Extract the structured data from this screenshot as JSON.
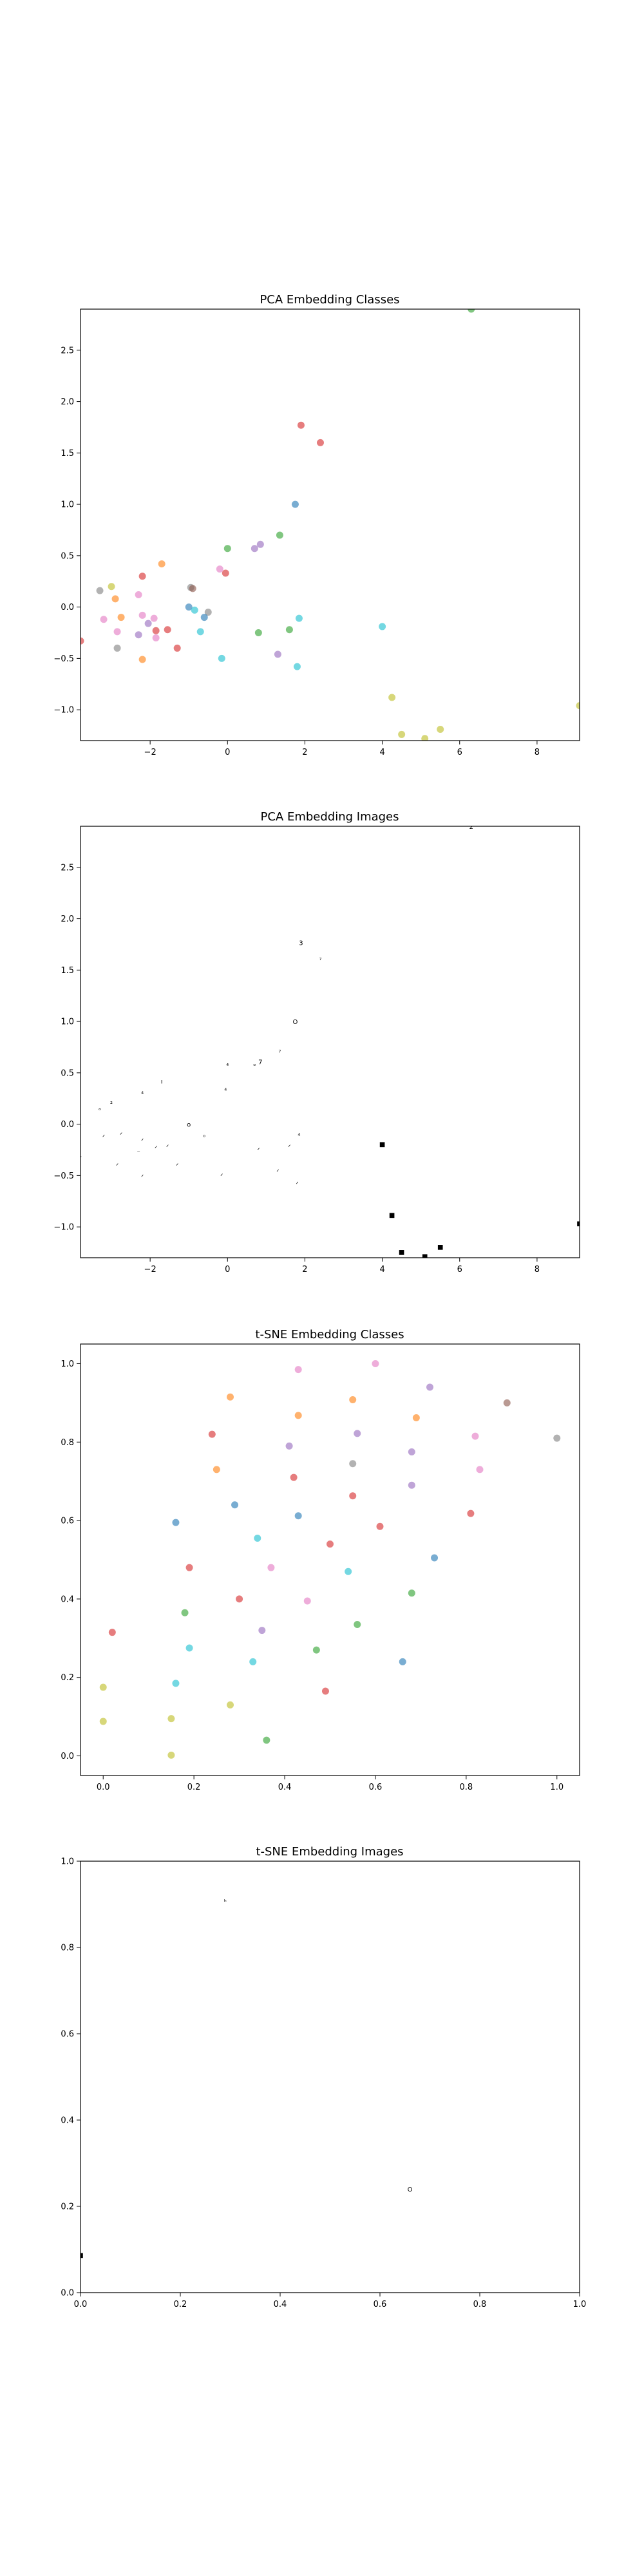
{
  "chart_data": [
    {
      "type": "scatter",
      "title": "PCA Embedding Classes",
      "xlim": [
        -3.8,
        9.1
      ],
      "ylim": [
        -1.3,
        2.9
      ],
      "xticks": [
        -2,
        0,
        2,
        4,
        6,
        8
      ],
      "yticks": [
        -1.0,
        -0.5,
        0.0,
        0.5,
        1.0,
        1.5,
        2.0,
        2.5
      ],
      "points": [
        {
          "x": 6.3,
          "y": 2.9,
          "color": "#2ca02c"
        },
        {
          "x": 1.9,
          "y": 1.77,
          "color": "#d62728"
        },
        {
          "x": 2.4,
          "y": 1.6,
          "color": "#d62728"
        },
        {
          "x": 1.75,
          "y": 1.0,
          "color": "#1f77b4"
        },
        {
          "x": 1.35,
          "y": 0.7,
          "color": "#2ca02c"
        },
        {
          "x": 0.0,
          "y": 0.57,
          "color": "#2ca02c"
        },
        {
          "x": 0.85,
          "y": 0.61,
          "color": "#9467bd"
        },
        {
          "x": 0.7,
          "y": 0.57,
          "color": "#9467bd"
        },
        {
          "x": -1.7,
          "y": 0.42,
          "color": "#ff7f0e"
        },
        {
          "x": -0.2,
          "y": 0.37,
          "color": "#e377c2"
        },
        {
          "x": -0.05,
          "y": 0.33,
          "color": "#d62728"
        },
        {
          "x": -2.2,
          "y": 0.3,
          "color": "#d62728"
        },
        {
          "x": -3.3,
          "y": 0.16,
          "color": "#7f7f7f"
        },
        {
          "x": -3.0,
          "y": 0.2,
          "color": "#bcbd22"
        },
        {
          "x": -0.95,
          "y": 0.19,
          "color": "#7f7f7f"
        },
        {
          "x": -0.9,
          "y": 0.18,
          "color": "#8c564b"
        },
        {
          "x": -2.9,
          "y": 0.08,
          "color": "#ff7f0e"
        },
        {
          "x": -2.3,
          "y": 0.12,
          "color": "#e377c2"
        },
        {
          "x": -1.0,
          "y": 0.0,
          "color": "#1f77b4"
        },
        {
          "x": -0.85,
          "y": -0.03,
          "color": "#17becf"
        },
        {
          "x": -0.5,
          "y": -0.05,
          "color": "#7f7f7f"
        },
        {
          "x": -0.6,
          "y": -0.1,
          "color": "#1f77b4"
        },
        {
          "x": -3.2,
          "y": -0.12,
          "color": "#e377c2"
        },
        {
          "x": -2.75,
          "y": -0.1,
          "color": "#ff7f0e"
        },
        {
          "x": -2.2,
          "y": -0.08,
          "color": "#e377c2"
        },
        {
          "x": -1.9,
          "y": -0.11,
          "color": "#e377c2"
        },
        {
          "x": -2.05,
          "y": -0.16,
          "color": "#9467bd"
        },
        {
          "x": -1.85,
          "y": -0.23,
          "color": "#d62728"
        },
        {
          "x": -1.55,
          "y": -0.22,
          "color": "#d62728"
        },
        {
          "x": -0.7,
          "y": -0.24,
          "color": "#17becf"
        },
        {
          "x": -2.85,
          "y": -0.24,
          "color": "#e377c2"
        },
        {
          "x": -2.3,
          "y": -0.27,
          "color": "#9467bd"
        },
        {
          "x": -1.85,
          "y": -0.3,
          "color": "#e377c2"
        },
        {
          "x": -1.3,
          "y": -0.4,
          "color": "#d62728"
        },
        {
          "x": -2.85,
          "y": -0.4,
          "color": "#7f7f7f"
        },
        {
          "x": -3.8,
          "y": -0.33,
          "color": "#d62728"
        },
        {
          "x": -2.2,
          "y": -0.51,
          "color": "#ff7f0e"
        },
        {
          "x": -0.15,
          "y": -0.5,
          "color": "#17becf"
        },
        {
          "x": 0.8,
          "y": -0.25,
          "color": "#2ca02c"
        },
        {
          "x": 1.6,
          "y": -0.22,
          "color": "#2ca02c"
        },
        {
          "x": 1.85,
          "y": -0.11,
          "color": "#17becf"
        },
        {
          "x": 1.3,
          "y": -0.46,
          "color": "#9467bd"
        },
        {
          "x": 1.8,
          "y": -0.58,
          "color": "#17becf"
        },
        {
          "x": 4.0,
          "y": -0.19,
          "color": "#17becf"
        },
        {
          "x": 4.25,
          "y": -0.88,
          "color": "#bcbd22"
        },
        {
          "x": 4.5,
          "y": -1.24,
          "color": "#bcbd22"
        },
        {
          "x": 5.5,
          "y": -1.19,
          "color": "#bcbd22"
        },
        {
          "x": 5.1,
          "y": -1.28,
          "color": "#bcbd22"
        },
        {
          "x": 9.1,
          "y": -0.96,
          "color": "#bcbd22"
        }
      ]
    },
    {
      "type": "scatter",
      "title": "PCA Embedding Images",
      "xlim": [
        -3.8,
        9.1
      ],
      "ylim": [
        -1.3,
        2.9
      ],
      "xticks": [
        -2,
        0,
        2,
        4,
        6,
        8
      ],
      "yticks": [
        -1.0,
        -0.5,
        0.0,
        0.5,
        1.0,
        1.5,
        2.0,
        2.5
      ],
      "points": [
        {
          "x": 6.3,
          "y": 2.9,
          "glyph": "2"
        },
        {
          "x": 1.9,
          "y": 1.77,
          "glyph": "3"
        },
        {
          "x": 2.4,
          "y": 1.6,
          "glyph": "⁷"
        },
        {
          "x": 1.75,
          "y": 1.0,
          "glyph": "O"
        },
        {
          "x": 1.35,
          "y": 0.7,
          "glyph": "⁷"
        },
        {
          "x": 0.0,
          "y": 0.57,
          "glyph": "⁴"
        },
        {
          "x": 0.85,
          "y": 0.61,
          "glyph": "7"
        },
        {
          "x": 0.7,
          "y": 0.57,
          "glyph": "ᵒ"
        },
        {
          "x": -1.7,
          "y": 0.42,
          "glyph": "ı"
        },
        {
          "x": -0.05,
          "y": 0.33,
          "glyph": "⁴"
        },
        {
          "x": -2.2,
          "y": 0.3,
          "glyph": "⁴"
        },
        {
          "x": -3.3,
          "y": 0.16,
          "glyph": "ₒ"
        },
        {
          "x": -3.0,
          "y": 0.2,
          "glyph": "²"
        },
        {
          "x": -1.0,
          "y": 0.0,
          "glyph": "o"
        },
        {
          "x": -0.6,
          "y": -0.1,
          "glyph": "ₒ"
        },
        {
          "x": -3.2,
          "y": -0.12,
          "glyph": "ᐟ"
        },
        {
          "x": -2.75,
          "y": -0.1,
          "glyph": "ᐟ"
        },
        {
          "x": -2.2,
          "y": -0.16,
          "glyph": "ᐟ"
        },
        {
          "x": -1.85,
          "y": -0.23,
          "glyph": "ᐟ"
        },
        {
          "x": -1.55,
          "y": -0.22,
          "glyph": "ᐟ"
        },
        {
          "x": -2.3,
          "y": -0.27,
          "glyph": "⁻"
        },
        {
          "x": -3.8,
          "y": -0.33,
          "glyph": "ᐟ"
        },
        {
          "x": -2.85,
          "y": -0.4,
          "glyph": "ᐟ"
        },
        {
          "x": -1.3,
          "y": -0.4,
          "glyph": "ᐟ"
        },
        {
          "x": -2.2,
          "y": -0.51,
          "glyph": "ᐟ"
        },
        {
          "x": -0.15,
          "y": -0.5,
          "glyph": "ᐟ"
        },
        {
          "x": 0.8,
          "y": -0.25,
          "glyph": "ᐟ"
        },
        {
          "x": 1.6,
          "y": -0.22,
          "glyph": "ᐟ"
        },
        {
          "x": 1.85,
          "y": -0.11,
          "glyph": "⁴"
        },
        {
          "x": 1.3,
          "y": -0.46,
          "glyph": "ᐟ"
        },
        {
          "x": 1.8,
          "y": -0.58,
          "glyph": "ᐟ"
        },
        {
          "x": 4.0,
          "y": -0.19,
          "glyph": "■"
        },
        {
          "x": 4.25,
          "y": -0.88,
          "glyph": "■"
        },
        {
          "x": 4.5,
          "y": -1.24,
          "glyph": "■"
        },
        {
          "x": 5.5,
          "y": -1.19,
          "glyph": "■"
        },
        {
          "x": 5.1,
          "y": -1.28,
          "glyph": "■"
        },
        {
          "x": 9.1,
          "y": -0.96,
          "glyph": "■"
        }
      ]
    },
    {
      "type": "scatter",
      "title": "t-SNE Embedding Classes",
      "xlim": [
        -0.05,
        1.05
      ],
      "ylim": [
        -0.05,
        1.05
      ],
      "xticks": [
        0.0,
        0.2,
        0.4,
        0.6,
        0.8,
        1.0
      ],
      "yticks": [
        0.0,
        0.2,
        0.4,
        0.6,
        0.8,
        1.0
      ],
      "points": [
        {
          "x": 0.43,
          "y": 0.985,
          "color": "#e377c2"
        },
        {
          "x": 0.6,
          "y": 1.0,
          "color": "#e377c2"
        },
        {
          "x": 0.72,
          "y": 0.94,
          "color": "#9467bd"
        },
        {
          "x": 0.28,
          "y": 0.915,
          "color": "#ff7f0e"
        },
        {
          "x": 0.55,
          "y": 0.908,
          "color": "#ff7f0e"
        },
        {
          "x": 0.89,
          "y": 0.9,
          "color": "#8c564b"
        },
        {
          "x": 0.43,
          "y": 0.868,
          "color": "#ff7f0e"
        },
        {
          "x": 0.69,
          "y": 0.862,
          "color": "#ff7f0e"
        },
        {
          "x": 0.24,
          "y": 0.82,
          "color": "#d62728"
        },
        {
          "x": 0.56,
          "y": 0.822,
          "color": "#9467bd"
        },
        {
          "x": 0.82,
          "y": 0.815,
          "color": "#e377c2"
        },
        {
          "x": 1.0,
          "y": 0.81,
          "color": "#7f7f7f"
        },
        {
          "x": 0.41,
          "y": 0.79,
          "color": "#9467bd"
        },
        {
          "x": 0.68,
          "y": 0.775,
          "color": "#9467bd"
        },
        {
          "x": 0.55,
          "y": 0.745,
          "color": "#7f7f7f"
        },
        {
          "x": 0.25,
          "y": 0.73,
          "color": "#ff7f0e"
        },
        {
          "x": 0.83,
          "y": 0.73,
          "color": "#e377c2"
        },
        {
          "x": 0.42,
          "y": 0.71,
          "color": "#d62728"
        },
        {
          "x": 0.68,
          "y": 0.69,
          "color": "#9467bd"
        },
        {
          "x": 0.55,
          "y": 0.663,
          "color": "#d62728"
        },
        {
          "x": 0.29,
          "y": 0.64,
          "color": "#1f77b4"
        },
        {
          "x": 0.81,
          "y": 0.618,
          "color": "#d62728"
        },
        {
          "x": 0.43,
          "y": 0.612,
          "color": "#1f77b4"
        },
        {
          "x": 0.16,
          "y": 0.595,
          "color": "#1f77b4"
        },
        {
          "x": 0.61,
          "y": 0.585,
          "color": "#d62728"
        },
        {
          "x": 0.34,
          "y": 0.555,
          "color": "#17becf"
        },
        {
          "x": 0.5,
          "y": 0.54,
          "color": "#d62728"
        },
        {
          "x": 0.73,
          "y": 0.505,
          "color": "#1f77b4"
        },
        {
          "x": 0.19,
          "y": 0.48,
          "color": "#d62728"
        },
        {
          "x": 0.37,
          "y": 0.48,
          "color": "#e377c2"
        },
        {
          "x": 0.54,
          "y": 0.47,
          "color": "#17becf"
        },
        {
          "x": 0.68,
          "y": 0.415,
          "color": "#2ca02c"
        },
        {
          "x": 0.3,
          "y": 0.4,
          "color": "#d62728"
        },
        {
          "x": 0.45,
          "y": 0.395,
          "color": "#e377c2"
        },
        {
          "x": 0.18,
          "y": 0.365,
          "color": "#2ca02c"
        },
        {
          "x": 0.56,
          "y": 0.335,
          "color": "#2ca02c"
        },
        {
          "x": 0.35,
          "y": 0.32,
          "color": "#9467bd"
        },
        {
          "x": 0.02,
          "y": 0.315,
          "color": "#d62728"
        },
        {
          "x": 0.19,
          "y": 0.275,
          "color": "#17becf"
        },
        {
          "x": 0.47,
          "y": 0.27,
          "color": "#2ca02c"
        },
        {
          "x": 0.33,
          "y": 0.24,
          "color": "#17becf"
        },
        {
          "x": 0.66,
          "y": 0.24,
          "color": "#1f77b4"
        },
        {
          "x": 0.16,
          "y": 0.185,
          "color": "#17becf"
        },
        {
          "x": 0.0,
          "y": 0.175,
          "color": "#bcbd22"
        },
        {
          "x": 0.49,
          "y": 0.165,
          "color": "#d62728"
        },
        {
          "x": 0.28,
          "y": 0.13,
          "color": "#bcbd22"
        },
        {
          "x": 0.15,
          "y": 0.095,
          "color": "#bcbd22"
        },
        {
          "x": 0.0,
          "y": 0.088,
          "color": "#bcbd22"
        },
        {
          "x": 0.36,
          "y": 0.04,
          "color": "#2ca02c"
        },
        {
          "x": 0.15,
          "y": 0.002,
          "color": "#bcbd22"
        }
      ]
    },
    {
      "type": "scatter",
      "title": "t-SNE Embedding Images",
      "xlim": [
        0.0,
        1.0
      ],
      "ylim": [
        0.0,
        1.0
      ],
      "xticks": [
        0.0,
        0.2,
        0.4,
        0.6,
        0.8,
        1.0
      ],
      "yticks": [
        0.0,
        0.2,
        0.4,
        0.6,
        0.8,
        1.0
      ],
      "points": [
        {
          "x": 0.29,
          "y": 0.912,
          "glyph": "ₕ"
        },
        {
          "x": 0.66,
          "y": 0.24,
          "glyph": "O"
        },
        {
          "x": 0.0,
          "y": 0.088,
          "glyph": "■"
        }
      ]
    }
  ]
}
